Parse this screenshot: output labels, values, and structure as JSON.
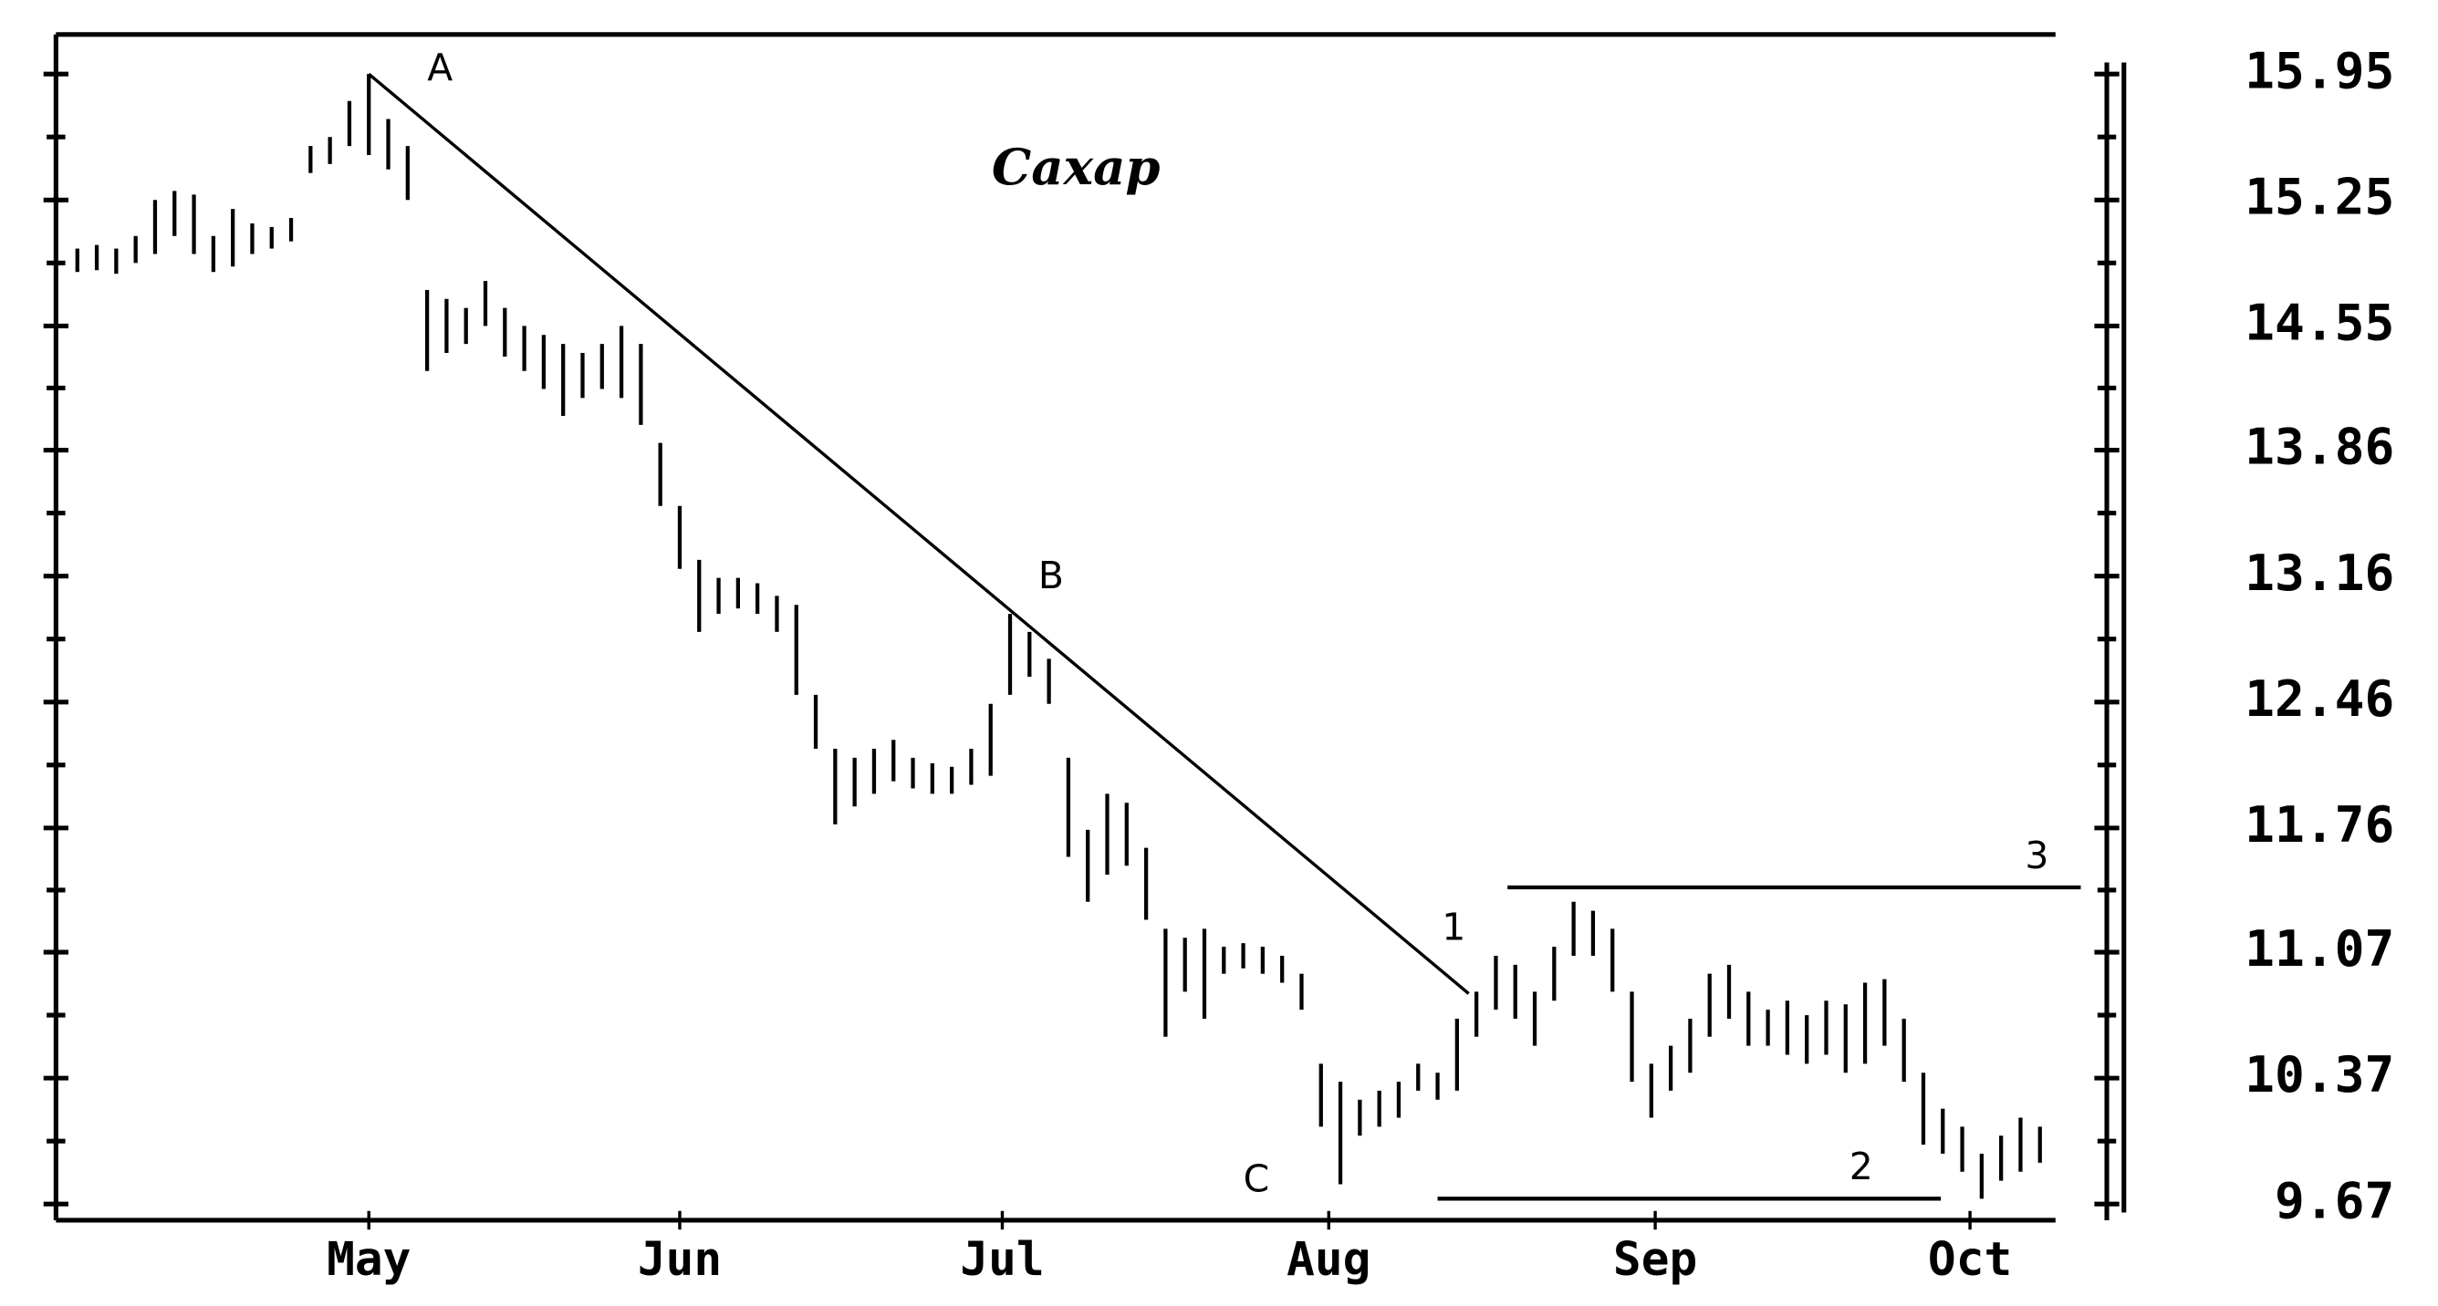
{
  "chart_data": {
    "type": "ohlc",
    "title": "Сахар",
    "x": [
      0,
      1,
      2,
      3,
      4,
      5,
      6,
      7,
      8,
      9,
      10,
      11,
      12,
      13,
      14,
      15,
      16,
      17,
      18,
      19,
      20,
      21,
      22,
      23,
      24,
      25,
      26,
      27,
      28,
      29,
      30,
      31,
      32,
      33,
      34,
      35,
      36,
      37,
      38,
      39,
      40,
      41,
      42,
      43,
      44,
      45,
      46,
      47,
      48,
      49,
      50,
      51,
      52,
      53,
      54,
      55,
      56,
      57,
      58,
      59,
      60,
      61,
      62,
      63,
      64,
      65,
      66,
      67,
      68,
      69,
      70,
      71,
      72,
      73,
      74,
      75,
      76,
      77,
      78,
      79,
      80,
      81,
      82,
      83,
      84,
      85,
      86,
      87,
      88,
      89,
      90,
      91,
      92,
      93,
      94,
      95,
      96,
      97,
      98,
      99,
      100,
      101
    ],
    "high": [
      14.98,
      15.0,
      14.98,
      15.05,
      15.25,
      15.3,
      15.28,
      15.05,
      15.2,
      15.12,
      15.1,
      15.15,
      15.55,
      15.6,
      15.8,
      15.95,
      15.7,
      15.55,
      14.75,
      14.7,
      14.65,
      14.8,
      14.65,
      14.55,
      14.5,
      14.45,
      14.4,
      14.45,
      14.55,
      14.45,
      13.9,
      13.55,
      13.25,
      13.15,
      13.15,
      13.12,
      13.05,
      13.0,
      12.5,
      12.2,
      12.15,
      12.2,
      12.25,
      12.15,
      12.12,
      12.1,
      12.2,
      12.45,
      12.95,
      12.85,
      12.7,
      12.15,
      11.75,
      11.95,
      11.9,
      11.65,
      11.2,
      11.15,
      11.2,
      11.1,
      11.12,
      11.1,
      11.05,
      10.95,
      10.45,
      10.35,
      10.25,
      10.3,
      10.35,
      10.45,
      10.4,
      10.7,
      10.85,
      11.05,
      11.0,
      10.85,
      11.1,
      11.35,
      11.3,
      11.2,
      10.85,
      10.45,
      10.55,
      10.7,
      10.95,
      11.0,
      10.85,
      10.75,
      10.8,
      10.72,
      10.8,
      10.78,
      10.9,
      10.92,
      10.7,
      10.4,
      10.2,
      10.1,
      9.95,
      10.05,
      10.15,
      10.1
    ],
    "low": [
      14.85,
      14.86,
      14.84,
      14.9,
      14.95,
      15.05,
      14.95,
      14.85,
      14.88,
      14.95,
      14.98,
      15.02,
      15.4,
      15.45,
      15.55,
      15.5,
      15.42,
      15.25,
      14.3,
      14.4,
      14.45,
      14.55,
      14.38,
      14.3,
      14.2,
      14.05,
      14.15,
      14.2,
      14.15,
      14.0,
      13.55,
      13.2,
      12.85,
      12.95,
      12.98,
      12.95,
      12.85,
      12.5,
      12.2,
      11.78,
      11.88,
      11.95,
      12.02,
      11.98,
      11.95,
      11.95,
      12.0,
      12.05,
      12.5,
      12.6,
      12.45,
      11.6,
      11.35,
      11.5,
      11.55,
      11.25,
      10.6,
      10.85,
      10.7,
      10.95,
      10.98,
      10.95,
      10.9,
      10.75,
      10.1,
      9.78,
      10.05,
      10.1,
      10.15,
      10.3,
      10.25,
      10.3,
      10.6,
      10.75,
      10.7,
      10.55,
      10.8,
      11.05,
      11.05,
      10.85,
      10.35,
      10.15,
      10.3,
      10.4,
      10.6,
      10.7,
      10.55,
      10.55,
      10.5,
      10.45,
      10.5,
      10.4,
      10.45,
      10.55,
      10.35,
      10.0,
      9.95,
      9.85,
      9.7,
      9.8,
      9.85,
      9.9
    ],
    "xlim": [
      -1.1,
      101.8
    ],
    "xticks": [
      {
        "value": 15,
        "label": "May"
      },
      {
        "value": 31,
        "label": "Jun"
      },
      {
        "value": 47.6,
        "label": "Jul"
      },
      {
        "value": 64.4,
        "label": "Aug"
      },
      {
        "value": 81.2,
        "label": "Sep"
      },
      {
        "value": 97.4,
        "label": "Oct"
      }
    ],
    "ylim": [
      9.58,
      16.17
    ],
    "yticks": [
      15.95,
      15.25,
      14.55,
      13.86,
      13.16,
      12.46,
      11.76,
      11.07,
      10.37,
      9.67
    ],
    "trendline": {
      "x": [
        15,
        71.6
      ],
      "y": [
        15.95,
        10.84
      ]
    },
    "levels": [
      {
        "label": "3",
        "value": 11.43,
        "x": [
          73.6,
          103.1
        ]
      },
      {
        "label": "2",
        "value": 9.7,
        "x": [
          70.0,
          95.9
        ]
      }
    ],
    "annotations": [
      "A",
      "B",
      "C",
      "1"
    ]
  }
}
